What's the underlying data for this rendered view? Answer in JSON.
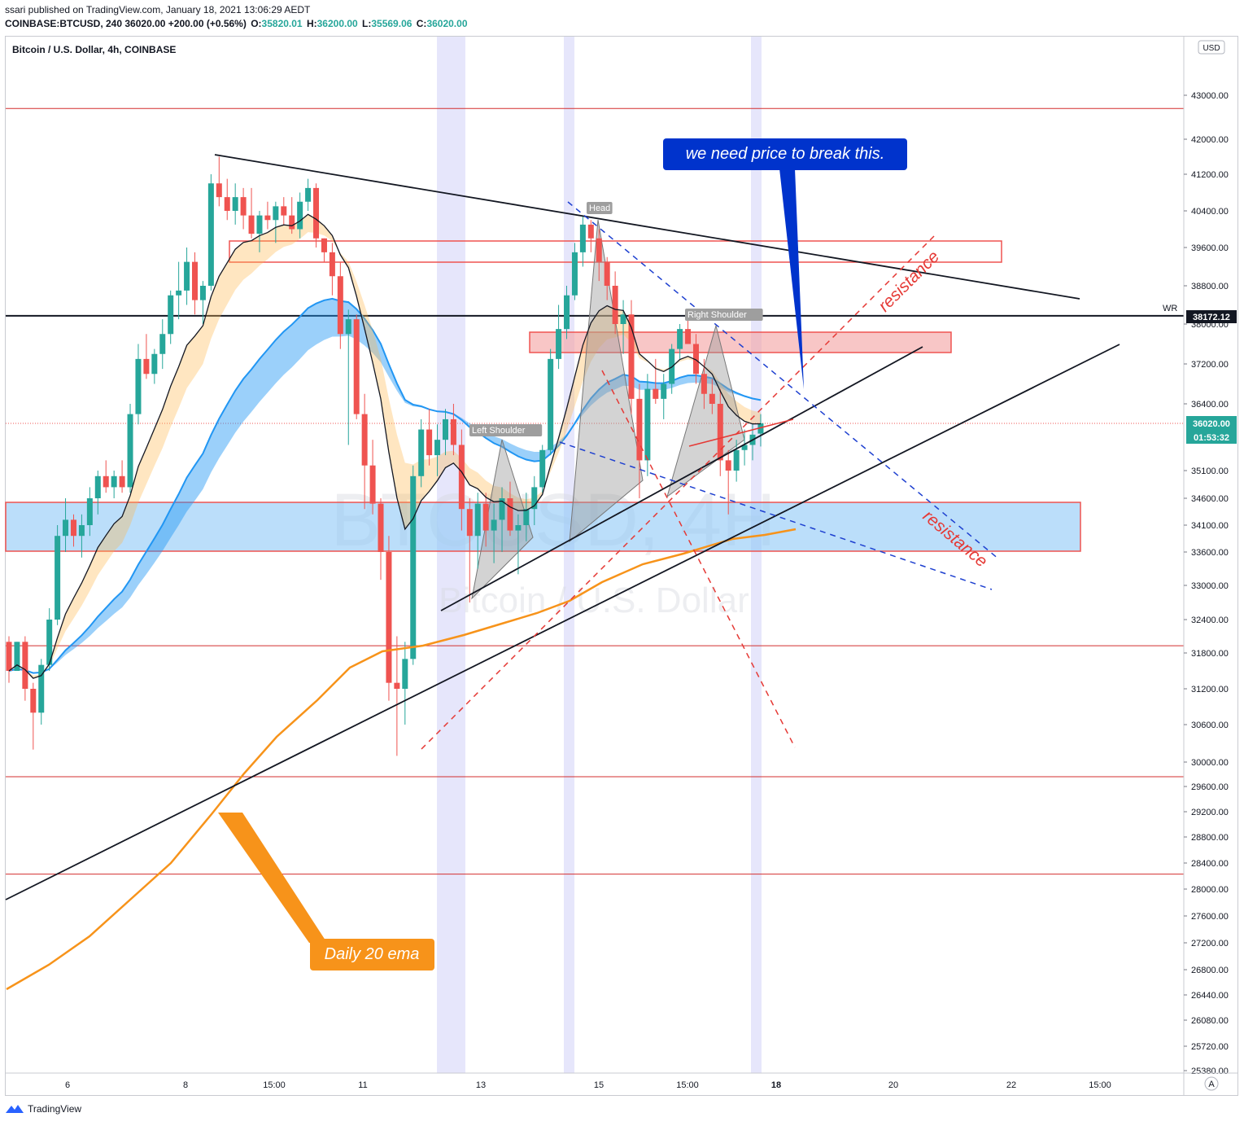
{
  "published": "ssari published on TradingView.com, January 18, 2021 13:06:29 AEDT",
  "quote": {
    "symbol": "COINBASE:BTCUSD, 240",
    "price": "36020.00",
    "change": "+200.00 (+0.56%)",
    "o_label": "O:",
    "o": "35820.01",
    "h_label": "H:",
    "h": "36200.00",
    "l_label": "L:",
    "l": "35569.06",
    "c_label": "C:",
    "c": "36020.00"
  },
  "footer": {
    "brand": "TradingView"
  },
  "colors": {
    "up": "#26a69a",
    "down": "#ef5350",
    "ema_fast": "#131722",
    "ema_band_blue": "#2196f3",
    "ema_band_orange": "#ffb74d",
    "daily_ema": "#f7931a",
    "callout_blue": "#0033cc",
    "callout_orange": "#f7931a",
    "resistance": "#ef5350",
    "dashed_blue": "#1e40d0"
  },
  "chart_data": {
    "type": "candlestick",
    "title": "Bitcoin / U.S. Dollar, 4h, COINBASE",
    "watermark": {
      "symbol": "BTCUSD, 4H",
      "name": "Bitcoin / U.S. Dollar"
    },
    "currency_badge": "USD",
    "ylim": [
      25380,
      44000
    ],
    "y_ticks": [
      "43000.00",
      "42000.00",
      "41200.00",
      "40400.00",
      "39600.00",
      "38800.00",
      "38000.00",
      "37200.00",
      "36400.00",
      "35100.00",
      "34600.00",
      "34100.00",
      "33600.00",
      "33000.00",
      "32400.00",
      "31800.00",
      "31200.00",
      "30600.00",
      "30000.00",
      "29600.00",
      "29200.00",
      "28800.00",
      "28400.00",
      "28000.00",
      "27600.00",
      "27200.00",
      "26800.00",
      "26440.00",
      "26080.00",
      "25720.00",
      "25380.00"
    ],
    "x_ticks": [
      "6",
      "8",
      "15:00",
      "11",
      "13",
      "15",
      "15:00",
      "18",
      "20",
      "22",
      "15:00"
    ],
    "current_price": "36020.00",
    "countdown": "01:53:32",
    "wr_label": "WR",
    "wr_price": "38172.12",
    "auto_label": "A",
    "candles": [
      [
        32000,
        32100,
        31300,
        31500
      ],
      [
        31500,
        32000,
        31600,
        32000
      ],
      [
        32000,
        32100,
        31000,
        31200
      ],
      [
        31200,
        31300,
        30200,
        30800
      ],
      [
        30800,
        31700,
        30600,
        31600
      ],
      [
        31600,
        32600,
        31500,
        32400
      ],
      [
        32400,
        34100,
        32300,
        33900
      ],
      [
        33900,
        34600,
        33600,
        34200
      ],
      [
        34200,
        34300,
        33700,
        33900
      ],
      [
        33900,
        34300,
        33500,
        34100
      ],
      [
        34100,
        34800,
        33900,
        34600
      ],
      [
        34600,
        35100,
        34300,
        35000
      ],
      [
        35000,
        35300,
        34700,
        34800
      ],
      [
        34800,
        35100,
        34600,
        35000
      ],
      [
        35000,
        35300,
        34700,
        34800
      ],
      [
        34800,
        36400,
        34700,
        36200
      ],
      [
        36200,
        37600,
        36000,
        37300
      ],
      [
        37300,
        37800,
        36900,
        37000
      ],
      [
        37000,
        37500,
        36800,
        37400
      ],
      [
        37400,
        38100,
        37100,
        37800
      ],
      [
        37800,
        38700,
        37600,
        38600
      ],
      [
        38600,
        39300,
        38100,
        38700
      ],
      [
        38700,
        39600,
        38400,
        39300
      ],
      [
        39300,
        39500,
        38200,
        38500
      ],
      [
        38500,
        38900,
        38000,
        38800
      ],
      [
        38800,
        41200,
        38700,
        41000
      ],
      [
        41000,
        41600,
        40500,
        40700
      ],
      [
        40700,
        41100,
        40200,
        40400
      ],
      [
        40400,
        41000,
        40100,
        40700
      ],
      [
        40700,
        40900,
        40000,
        40300
      ],
      [
        40300,
        40900,
        39800,
        39900
      ],
      [
        39900,
        40400,
        39500,
        40300
      ],
      [
        40300,
        40600,
        40000,
        40200
      ],
      [
        40200,
        40600,
        39700,
        40500
      ],
      [
        40500,
        40700,
        40100,
        40300
      ],
      [
        40300,
        40700,
        39900,
        40000
      ],
      [
        40000,
        40800,
        39800,
        40600
      ],
      [
        40600,
        41100,
        40400,
        40900
      ],
      [
        40900,
        41000,
        39600,
        39800
      ],
      [
        39800,
        39800,
        39300,
        39500
      ],
      [
        39500,
        39700,
        38600,
        39000
      ],
      [
        39000,
        39300,
        37500,
        37800
      ],
      [
        37800,
        38300,
        35600,
        38100
      ],
      [
        38100,
        38200,
        36100,
        36200
      ],
      [
        36200,
        36600,
        34400,
        35200
      ],
      [
        35200,
        35700,
        34300,
        34500
      ],
      [
        34500,
        34600,
        33100,
        33600
      ],
      [
        33600,
        33900,
        31000,
        31300
      ],
      [
        31300,
        32100,
        30100,
        31200
      ],
      [
        31200,
        32000,
        30600,
        31700
      ],
      [
        31700,
        35200,
        31600,
        35000
      ],
      [
        35000,
        36100,
        34800,
        35900
      ],
      [
        35900,
        36300,
        35200,
        35400
      ],
      [
        35400,
        36000,
        35000,
        35700
      ],
      [
        35700,
        36300,
        35400,
        36100
      ],
      [
        36100,
        36400,
        35400,
        35600
      ],
      [
        35600,
        35900,
        34000,
        34400
      ],
      [
        34400,
        34600,
        32700,
        33900
      ],
      [
        33900,
        34700,
        33300,
        34500
      ],
      [
        34500,
        34700,
        33700,
        34000
      ],
      [
        34000,
        34500,
        33400,
        34200
      ],
      [
        34200,
        34800,
        33600,
        34600
      ],
      [
        34600,
        34900,
        33900,
        34000
      ],
      [
        34000,
        34300,
        33200,
        34100
      ],
      [
        34100,
        34700,
        33800,
        34400
      ],
      [
        34400,
        35000,
        34100,
        34800
      ],
      [
        34800,
        35600,
        34700,
        35500
      ],
      [
        35500,
        37500,
        35400,
        37300
      ],
      [
        37300,
        38400,
        37100,
        37900
      ],
      [
        37900,
        38800,
        37700,
        38600
      ],
      [
        38600,
        39700,
        38500,
        39500
      ],
      [
        39500,
        40300,
        39200,
        40100
      ],
      [
        40100,
        40200,
        39500,
        39800
      ],
      [
        39800,
        40000,
        38900,
        39300
      ],
      [
        39300,
        39400,
        38500,
        38800
      ],
      [
        38800,
        39100,
        37800,
        38000
      ],
      [
        38000,
        38500,
        37400,
        38200
      ],
      [
        38200,
        38500,
        36200,
        36500
      ],
      [
        36500,
        36800,
        34600,
        35300
      ],
      [
        35300,
        37000,
        35000,
        36700
      ],
      [
        36700,
        37300,
        36400,
        36500
      ],
      [
        36500,
        37000,
        36100,
        36800
      ],
      [
        36800,
        37600,
        36600,
        37500
      ],
      [
        37500,
        38000,
        37300,
        37900
      ],
      [
        37900,
        38300,
        37600,
        37600
      ],
      [
        37600,
        37800,
        36800,
        37000
      ],
      [
        37000,
        37300,
        36300,
        36600
      ],
      [
        36600,
        36900,
        36200,
        36400
      ],
      [
        36400,
        36700,
        35000,
        35300
      ],
      [
        35300,
        35500,
        34300,
        35100
      ],
      [
        35100,
        35700,
        34900,
        35500
      ],
      [
        35500,
        35900,
        35200,
        35600
      ],
      [
        35600,
        36000,
        35300,
        35800
      ],
      [
        35820,
        36200,
        35569,
        36020
      ]
    ],
    "callouts": [
      {
        "text": "we need price to break this."
      },
      {
        "text": "Daily 20 ema"
      }
    ],
    "pattern_labels": {
      "left_shoulder": "Left Shoulder",
      "head": "Head",
      "right_shoulder": "Right Shoulder"
    },
    "annotations": [
      "resistance",
      "resistance"
    ]
  }
}
